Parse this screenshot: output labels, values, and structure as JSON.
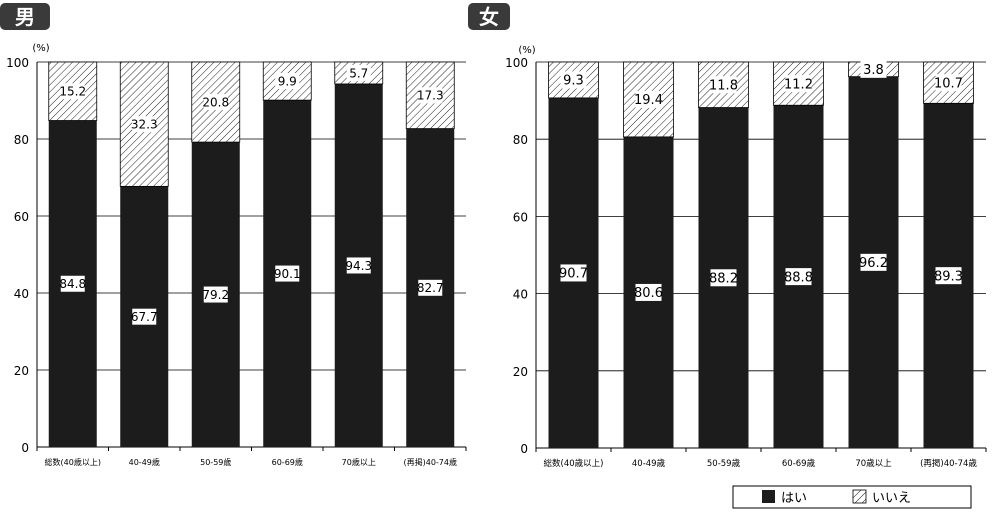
{
  "panels": [
    {
      "label": "男",
      "unit": "(%)"
    },
    {
      "label": "女",
      "unit": "(%)"
    }
  ],
  "legend": {
    "yes": "はい",
    "no": "いいえ"
  },
  "colors": {
    "yes": "#1c1c1c",
    "no_hatch": "#222222",
    "panel_label_bg": "#3a3a3a",
    "gridline": "#000000"
  },
  "chart_data": [
    {
      "type": "bar",
      "stacked": true,
      "title": "男",
      "categories": [
        "総数(40歳以上)",
        "40-49歳",
        "50-59歳",
        "60-69歳",
        "70歳以上",
        "(再掲)40-74歳"
      ],
      "series": [
        {
          "name": "はい",
          "values": [
            84.8,
            67.7,
            79.2,
            90.1,
            94.3,
            82.7
          ]
        },
        {
          "name": "いいえ",
          "values": [
            15.2,
            32.3,
            20.8,
            9.9,
            5.7,
            17.3
          ]
        }
      ],
      "ylim": [
        0,
        100
      ],
      "yticks": [
        0,
        20,
        40,
        60,
        80,
        100
      ],
      "ylabel": "(%)",
      "grid": true
    },
    {
      "type": "bar",
      "stacked": true,
      "title": "女",
      "categories": [
        "総数(40歳以上)",
        "40-49歳",
        "50-59歳",
        "60-69歳",
        "70歳以上",
        "(再掲)40-74歳"
      ],
      "series": [
        {
          "name": "はい",
          "values": [
            90.7,
            80.6,
            88.2,
            88.8,
            96.2,
            89.3
          ]
        },
        {
          "name": "いいえ",
          "values": [
            9.3,
            19.4,
            11.8,
            11.2,
            3.8,
            10.7
          ]
        }
      ],
      "ylim": [
        0,
        100
      ],
      "yticks": [
        0,
        20,
        40,
        60,
        80,
        100
      ],
      "ylabel": "(%)",
      "grid": true
    }
  ]
}
